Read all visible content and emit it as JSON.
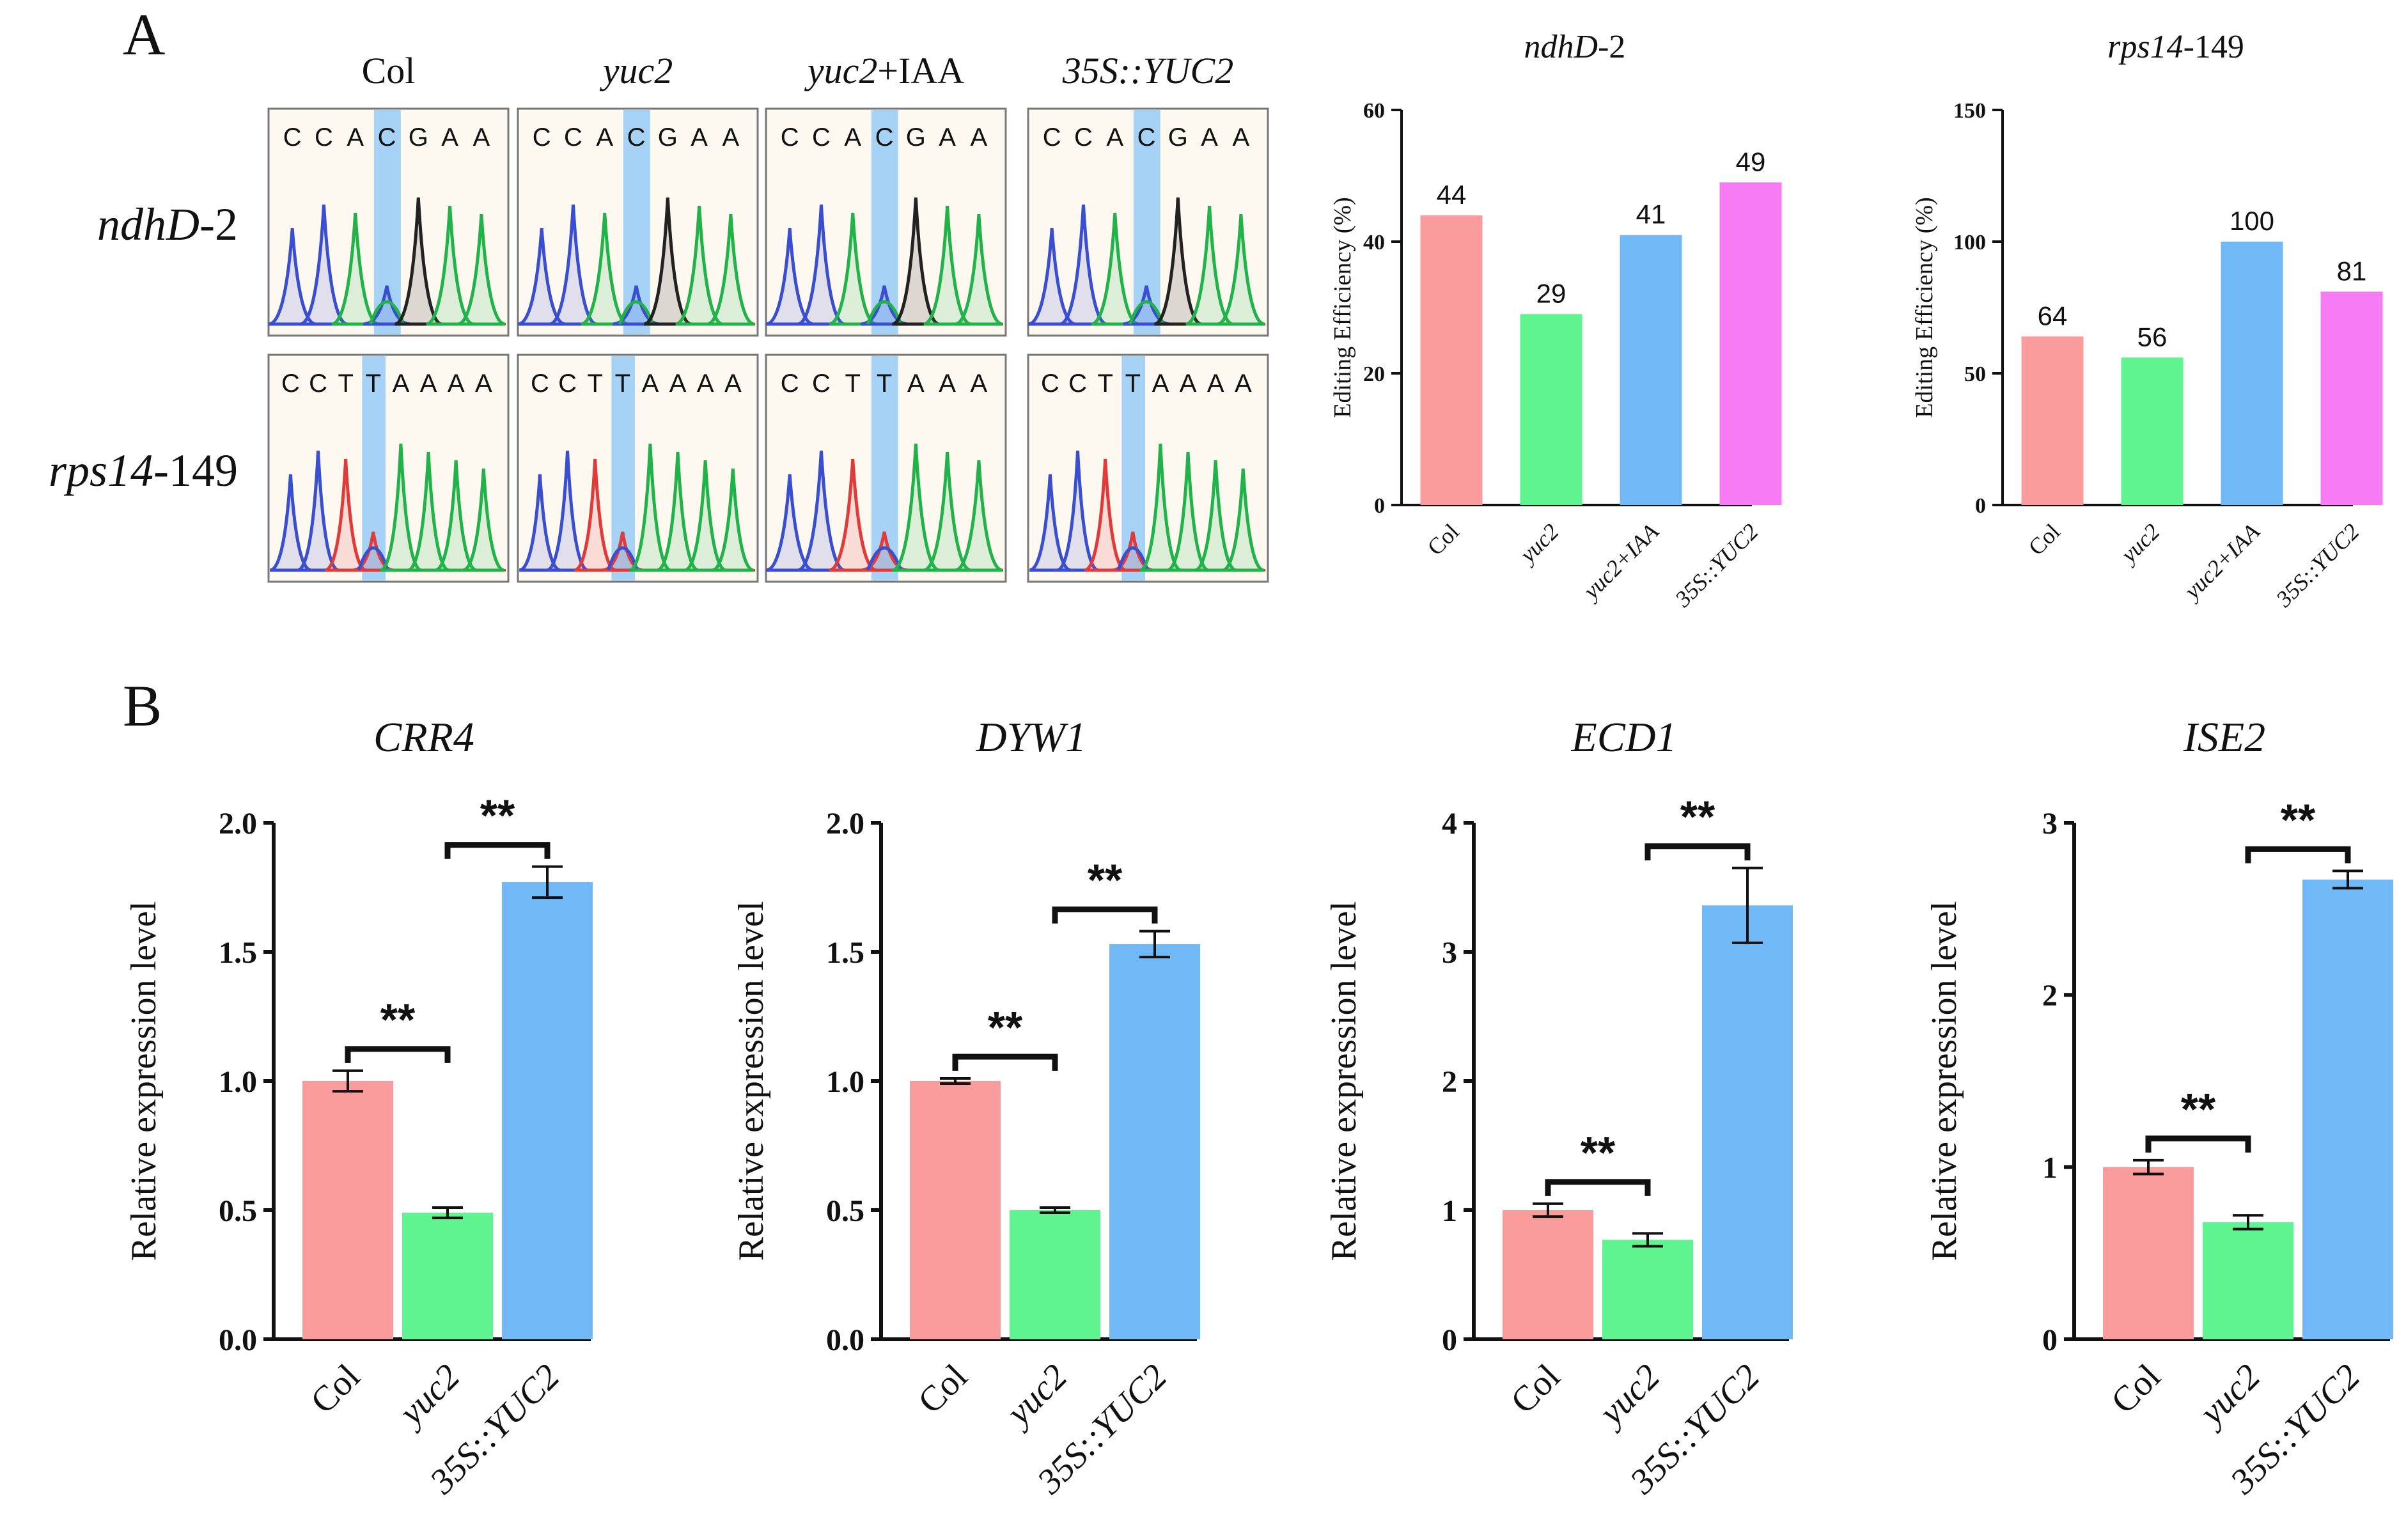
{
  "panels": [
    {
      "id": "panel-label-a",
      "label": "A"
    },
    {
      "id": "panel-label-b",
      "label": "B"
    }
  ],
  "colors": {
    "col": "#fa9c9c",
    "yuc2": "#5ff48f",
    "yuc2_iaa": "#71b8f7",
    "p35s": "#f77bf4",
    "trace_C": "#3a4fd0",
    "trace_A": "#21b34a",
    "trace_G": "#222222",
    "trace_T": "#e03b3b",
    "highlight": "#9ccdf5"
  },
  "chromatograms": {
    "columns": [
      {
        "label": "Col",
        "italic": false
      },
      {
        "label": "yuc2",
        "italic": true
      },
      {
        "label": "yuc2+IAA",
        "italic": true,
        "suffix": "+IAA"
      },
      {
        "label": "35S::YUC2",
        "italic": true
      }
    ],
    "rows": [
      {
        "gene": "ndhD",
        "suffix": "-2",
        "sequences": [
          "CCACGAA",
          "CCACGAA",
          "CCACGAA",
          "CCACGAA"
        ],
        "edit_index": 3
      },
      {
        "gene": "rps14",
        "suffix": "-149",
        "sequences": [
          "CCTTAAAA",
          "CCTTAAAA",
          "CCTTAAA",
          "CCTTAAAA"
        ],
        "edit_index": 3
      }
    ]
  },
  "chart_data": [
    {
      "type": "bar",
      "title": "ndhD-2",
      "title_italic": "ndhD",
      "title_suffix": "-2",
      "categories": [
        "Col",
        "yuc2",
        "yuc2+IAA",
        "35S::YUC2"
      ],
      "values": [
        44,
        29,
        41,
        49
      ],
      "data_labels": [
        "44",
        "29",
        "41",
        "49"
      ],
      "ylabel": "Editing Efficiency (%)",
      "ylim": [
        0,
        60
      ],
      "yticks": [
        0,
        20,
        40,
        60
      ],
      "color_keys": [
        "col",
        "yuc2",
        "yuc2_iaa",
        "p35s"
      ]
    },
    {
      "type": "bar",
      "title": "rps14-149",
      "title_italic": "rps14",
      "title_suffix": "-149",
      "categories": [
        "Col",
        "yuc2",
        "yuc2+IAA",
        "35S::YUC2"
      ],
      "values": [
        64,
        56,
        100,
        81
      ],
      "data_labels": [
        "64",
        "56",
        "100",
        "81"
      ],
      "ylabel": "Editing Efficiency (%)",
      "ylim": [
        0,
        150
      ],
      "yticks": [
        0,
        50,
        100,
        150
      ],
      "color_keys": [
        "col",
        "yuc2",
        "yuc2_iaa",
        "p35s"
      ]
    },
    {
      "type": "bar",
      "title": "CRR4",
      "categories": [
        "Col",
        "yuc2",
        "35S::YUC2"
      ],
      "values": [
        1.0,
        0.49,
        1.77
      ],
      "errors": [
        0.04,
        0.02,
        0.06
      ],
      "ylabel": "Relative expression level",
      "ylim": [
        0,
        2.0
      ],
      "yticks": [
        0,
        0.5,
        1.0,
        1.5,
        2.0
      ],
      "ytick_labels": [
        "0.0",
        "0.5",
        "1.0",
        "1.5",
        "2.0"
      ],
      "significance": [
        {
          "from": 0,
          "to": 1,
          "label": "**"
        },
        {
          "from": 1,
          "to": 2,
          "label": "**"
        }
      ],
      "color_keys": [
        "col",
        "yuc2",
        "yuc2_iaa"
      ]
    },
    {
      "type": "bar",
      "title": "DYW1",
      "categories": [
        "Col",
        "yuc2",
        "35S::YUC2"
      ],
      "values": [
        1.0,
        0.5,
        1.53
      ],
      "errors": [
        0.01,
        0.01,
        0.05
      ],
      "ylabel": "Relative expression level",
      "ylim": [
        0,
        2.0
      ],
      "yticks": [
        0,
        0.5,
        1.0,
        1.5,
        2.0
      ],
      "ytick_labels": [
        "0.0",
        "0.5",
        "1.0",
        "1.5",
        "2.0"
      ],
      "significance": [
        {
          "from": 0,
          "to": 1,
          "label": "**"
        },
        {
          "from": 1,
          "to": 2,
          "label": "**"
        }
      ],
      "color_keys": [
        "col",
        "yuc2",
        "yuc2_iaa"
      ]
    },
    {
      "type": "bar",
      "title": "ECD1",
      "categories": [
        "Col",
        "yuc2",
        "35S::YUC2"
      ],
      "values": [
        1.0,
        0.77,
        3.36
      ],
      "errors": [
        0.05,
        0.05,
        0.29
      ],
      "ylabel": "Relative expression level",
      "ylim": [
        0,
        4
      ],
      "yticks": [
        0,
        1,
        2,
        3,
        4
      ],
      "ytick_labels": [
        "0",
        "1",
        "2",
        "3",
        "4"
      ],
      "significance": [
        {
          "from": 0,
          "to": 1,
          "label": "**"
        },
        {
          "from": 1,
          "to": 2,
          "label": "**"
        }
      ],
      "color_keys": [
        "col",
        "yuc2",
        "yuc2_iaa"
      ]
    },
    {
      "type": "bar",
      "title": "ISE2",
      "categories": [
        "Col",
        "yuc2",
        "35S::YUC2"
      ],
      "values": [
        1.0,
        0.68,
        2.67
      ],
      "errors": [
        0.04,
        0.04,
        0.05
      ],
      "ylabel": "Relative expression level",
      "ylim": [
        0,
        3
      ],
      "yticks": [
        0,
        1,
        2,
        3
      ],
      "ytick_labels": [
        "0",
        "1",
        "2",
        "3"
      ],
      "significance": [
        {
          "from": 0,
          "to": 1,
          "label": "**"
        },
        {
          "from": 1,
          "to": 2,
          "label": "**"
        }
      ],
      "color_keys": [
        "col",
        "yuc2",
        "yuc2_iaa"
      ]
    }
  ]
}
